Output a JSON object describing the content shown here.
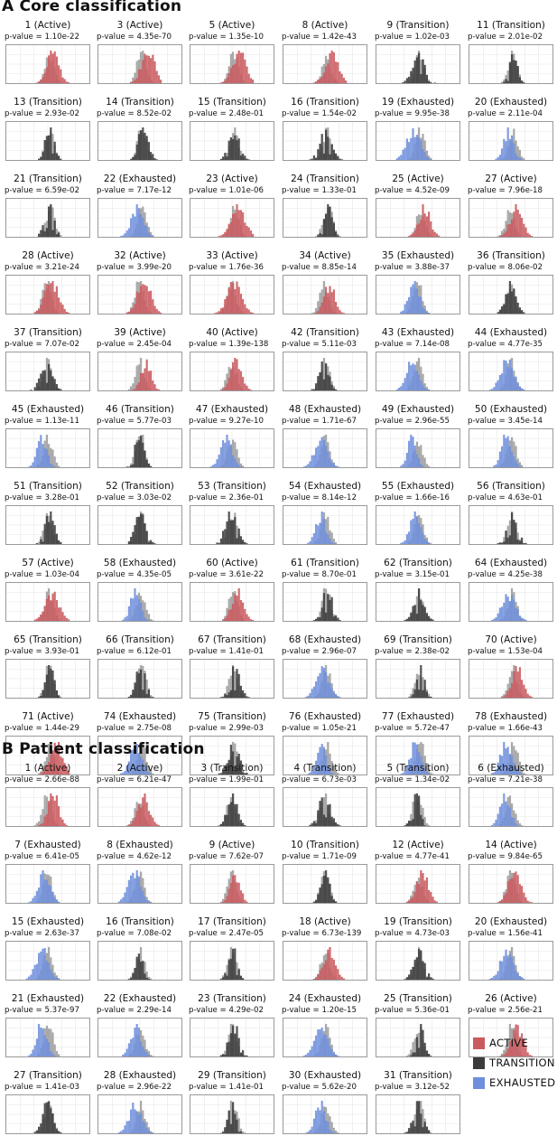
{
  "colors": {
    "Active": "#c95a5f",
    "Transition": "#3b3b3b",
    "Exhausted": "#6f8fdc",
    "reference": "#a8a8a8",
    "grid": "#e6e6e6"
  },
  "legend": [
    {
      "label": "ACTIVE",
      "cls": "Active"
    },
    {
      "label": "TRANSITION",
      "cls": "Transition"
    },
    {
      "label": "EXHAUSTED",
      "cls": "Exhausted"
    }
  ],
  "chart_data": [
    {
      "type": "histogram-grid",
      "title": "A Core classification",
      "panels": [
        {
          "id": "1",
          "cls": "Active",
          "pvalue": "1.10e-22"
        },
        {
          "id": "3",
          "cls": "Active",
          "pvalue": "4.35e-70"
        },
        {
          "id": "5",
          "cls": "Active",
          "pvalue": "1.35e-10"
        },
        {
          "id": "8",
          "cls": "Active",
          "pvalue": "1.42e-43"
        },
        {
          "id": "9",
          "cls": "Transition",
          "pvalue": "1.02e-03"
        },
        {
          "id": "11",
          "cls": "Transition",
          "pvalue": "2.01e-02"
        },
        {
          "id": "13",
          "cls": "Transition",
          "pvalue": "2.93e-02"
        },
        {
          "id": "14",
          "cls": "Transition",
          "pvalue": "8.52e-02"
        },
        {
          "id": "15",
          "cls": "Transition",
          "pvalue": "2.48e-01"
        },
        {
          "id": "16",
          "cls": "Transition",
          "pvalue": "1.54e-02"
        },
        {
          "id": "19",
          "cls": "Exhausted",
          "pvalue": "9.95e-38"
        },
        {
          "id": "20",
          "cls": "Exhausted",
          "pvalue": "2.11e-04"
        },
        {
          "id": "21",
          "cls": "Transition",
          "pvalue": "6.59e-02"
        },
        {
          "id": "22",
          "cls": "Exhausted",
          "pvalue": "7.17e-12"
        },
        {
          "id": "23",
          "cls": "Active",
          "pvalue": "1.01e-06"
        },
        {
          "id": "24",
          "cls": "Transition",
          "pvalue": "1.33e-01"
        },
        {
          "id": "25",
          "cls": "Active",
          "pvalue": "4.52e-09"
        },
        {
          "id": "27",
          "cls": "Active",
          "pvalue": "7.96e-18"
        },
        {
          "id": "28",
          "cls": "Active",
          "pvalue": "3.21e-24"
        },
        {
          "id": "32",
          "cls": "Active",
          "pvalue": "3.99e-20"
        },
        {
          "id": "33",
          "cls": "Active",
          "pvalue": "1.76e-36"
        },
        {
          "id": "34",
          "cls": "Active",
          "pvalue": "8.85e-14"
        },
        {
          "id": "35",
          "cls": "Exhausted",
          "pvalue": "3.88e-37"
        },
        {
          "id": "36",
          "cls": "Transition",
          "pvalue": "8.06e-02"
        },
        {
          "id": "37",
          "cls": "Transition",
          "pvalue": "7.07e-02"
        },
        {
          "id": "39",
          "cls": "Active",
          "pvalue": "2.45e-04"
        },
        {
          "id": "40",
          "cls": "Active",
          "pvalue": "1.39e-138"
        },
        {
          "id": "42",
          "cls": "Transition",
          "pvalue": "5.11e-03"
        },
        {
          "id": "43",
          "cls": "Exhausted",
          "pvalue": "7.14e-08"
        },
        {
          "id": "44",
          "cls": "Exhausted",
          "pvalue": "4.77e-35"
        },
        {
          "id": "45",
          "cls": "Exhausted",
          "pvalue": "1.13e-11"
        },
        {
          "id": "46",
          "cls": "Transition",
          "pvalue": "5.77e-03"
        },
        {
          "id": "47",
          "cls": "Exhausted",
          "pvalue": "9.27e-10"
        },
        {
          "id": "48",
          "cls": "Exhausted",
          "pvalue": "1.71e-67"
        },
        {
          "id": "49",
          "cls": "Exhausted",
          "pvalue": "2.96e-55"
        },
        {
          "id": "50",
          "cls": "Exhausted",
          "pvalue": "3.45e-14"
        },
        {
          "id": "51",
          "cls": "Transition",
          "pvalue": "3.28e-01"
        },
        {
          "id": "52",
          "cls": "Transition",
          "pvalue": "3.03e-02"
        },
        {
          "id": "53",
          "cls": "Transition",
          "pvalue": "2.36e-01"
        },
        {
          "id": "54",
          "cls": "Exhausted",
          "pvalue": "8.14e-12"
        },
        {
          "id": "55",
          "cls": "Exhausted",
          "pvalue": "1.66e-16"
        },
        {
          "id": "56",
          "cls": "Transition",
          "pvalue": "4.63e-01"
        },
        {
          "id": "57",
          "cls": "Active",
          "pvalue": "1.03e-04"
        },
        {
          "id": "58",
          "cls": "Exhausted",
          "pvalue": "4.35e-05"
        },
        {
          "id": "60",
          "cls": "Active",
          "pvalue": "3.61e-22"
        },
        {
          "id": "61",
          "cls": "Transition",
          "pvalue": "8.70e-01"
        },
        {
          "id": "62",
          "cls": "Transition",
          "pvalue": "3.15e-01"
        },
        {
          "id": "64",
          "cls": "Exhausted",
          "pvalue": "4.25e-38"
        },
        {
          "id": "65",
          "cls": "Transition",
          "pvalue": "3.93e-01"
        },
        {
          "id": "66",
          "cls": "Transition",
          "pvalue": "6.12e-01"
        },
        {
          "id": "67",
          "cls": "Transition",
          "pvalue": "1.41e-01"
        },
        {
          "id": "68",
          "cls": "Exhausted",
          "pvalue": "2.96e-07"
        },
        {
          "id": "69",
          "cls": "Transition",
          "pvalue": "2.38e-02"
        },
        {
          "id": "70",
          "cls": "Active",
          "pvalue": "1.53e-04"
        },
        {
          "id": "71",
          "cls": "Active",
          "pvalue": "1.44e-29"
        },
        {
          "id": "74",
          "cls": "Exhausted",
          "pvalue": "2.75e-08"
        },
        {
          "id": "75",
          "cls": "Transition",
          "pvalue": "2.99e-03"
        },
        {
          "id": "76",
          "cls": "Exhausted",
          "pvalue": "1.05e-21"
        },
        {
          "id": "77",
          "cls": "Exhausted",
          "pvalue": "5.72e-47"
        },
        {
          "id": "78",
          "cls": "Exhausted",
          "pvalue": "1.66e-43"
        }
      ]
    },
    {
      "type": "histogram-grid",
      "title": "B Patient classification",
      "panels": [
        {
          "id": "1",
          "cls": "Active",
          "pvalue": "2.66e-88"
        },
        {
          "id": "2",
          "cls": "Active",
          "pvalue": "6.21e-47"
        },
        {
          "id": "3",
          "cls": "Transition",
          "pvalue": "1.99e-01"
        },
        {
          "id": "4",
          "cls": "Transition",
          "pvalue": "6.73e-03"
        },
        {
          "id": "5",
          "cls": "Transition",
          "pvalue": "1.34e-02"
        },
        {
          "id": "6",
          "cls": "Exhausted",
          "pvalue": "7.21e-38"
        },
        {
          "id": "7",
          "cls": "Exhausted",
          "pvalue": "6.41e-05"
        },
        {
          "id": "8",
          "cls": "Exhausted",
          "pvalue": "4.62e-12"
        },
        {
          "id": "9",
          "cls": "Active",
          "pvalue": "7.62e-07"
        },
        {
          "id": "10",
          "cls": "Transition",
          "pvalue": "1.71e-09"
        },
        {
          "id": "12",
          "cls": "Active",
          "pvalue": "4.77e-41"
        },
        {
          "id": "14",
          "cls": "Active",
          "pvalue": "9.84e-65"
        },
        {
          "id": "15",
          "cls": "Exhausted",
          "pvalue": "2.63e-37"
        },
        {
          "id": "16",
          "cls": "Transition",
          "pvalue": "7.08e-02"
        },
        {
          "id": "17",
          "cls": "Transition",
          "pvalue": "2.47e-05"
        },
        {
          "id": "18",
          "cls": "Active",
          "pvalue": "6.73e-139"
        },
        {
          "id": "19",
          "cls": "Transition",
          "pvalue": "4.73e-03"
        },
        {
          "id": "20",
          "cls": "Exhausted",
          "pvalue": "1.56e-41"
        },
        {
          "id": "21",
          "cls": "Exhausted",
          "pvalue": "5.37e-97"
        },
        {
          "id": "22",
          "cls": "Exhausted",
          "pvalue": "2.29e-14"
        },
        {
          "id": "23",
          "cls": "Transition",
          "pvalue": "4.29e-02"
        },
        {
          "id": "24",
          "cls": "Exhausted",
          "pvalue": "1.20e-15"
        },
        {
          "id": "25",
          "cls": "Transition",
          "pvalue": "5.36e-01"
        },
        {
          "id": "26",
          "cls": "Active",
          "pvalue": "2.56e-21"
        },
        {
          "id": "27",
          "cls": "Transition",
          "pvalue": "1.41e-03"
        },
        {
          "id": "28",
          "cls": "Exhausted",
          "pvalue": "2.96e-22"
        },
        {
          "id": "29",
          "cls": "Transition",
          "pvalue": "1.41e-01"
        },
        {
          "id": "30",
          "cls": "Exhausted",
          "pvalue": "5.62e-20"
        },
        {
          "id": "31",
          "cls": "Transition",
          "pvalue": "3.12e-52"
        }
      ]
    }
  ]
}
